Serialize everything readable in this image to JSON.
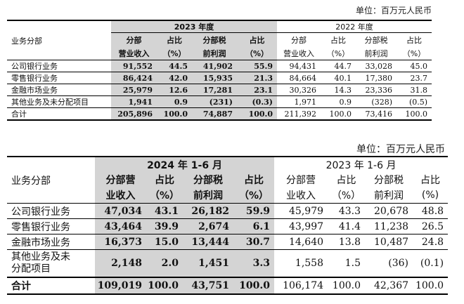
{
  "table1": {
    "unit": "单位：百万元人民币",
    "segment_header": "业务分部",
    "current_period": "2023 年度",
    "prior_period": "2022 年度",
    "cols_current": [
      [
        "分部",
        "营业收入"
      ],
      [
        "占比",
        "（%）"
      ],
      [
        "分部税",
        "前利润"
      ],
      [
        "占比",
        "（%）"
      ]
    ],
    "cols_prior": [
      [
        "分部",
        "营业收入"
      ],
      [
        "占比",
        "（%）"
      ],
      [
        "分部税",
        "前利润"
      ],
      [
        "占比",
        "（%）"
      ]
    ],
    "rows": [
      {
        "segment": "公司银行业务",
        "current": [
          "91,552",
          "44.5",
          "41,902",
          "55.9"
        ],
        "prior": [
          "94,431",
          "44.7",
          "33,028",
          "45.0"
        ]
      },
      {
        "segment": "零售银行业务",
        "current": [
          "86,424",
          "42.0",
          "15,935",
          "21.3"
        ],
        "prior": [
          "84,664",
          "40.1",
          "17,380",
          "23.7"
        ]
      },
      {
        "segment": "金融市场业务",
        "current": [
          "25,979",
          "12.6",
          "17,281",
          "23.1"
        ],
        "prior": [
          "30,326",
          "14.3",
          "23,336",
          "31.8"
        ]
      },
      {
        "segment": "其他业务及未分配项目",
        "current": [
          "1,941",
          "0.9",
          "(231)",
          "(0.3)"
        ],
        "prior": [
          "1,971",
          "0.9",
          "(328)",
          "(0.5)"
        ]
      },
      {
        "segment": "合计",
        "current": [
          "205,896",
          "100.0",
          "74,887",
          "100.0"
        ],
        "prior": [
          "211,392",
          "100.0",
          "73,416",
          "100.0"
        ]
      }
    ]
  },
  "table2": {
    "unit": "单位：百万元人民币",
    "segment_header": "业务分部",
    "current_period": "2024 年 1-6 月",
    "prior_period": "2023 年 1-6 月",
    "cols_current": [
      [
        "分部营",
        "业收入"
      ],
      [
        "占比",
        "（%）"
      ],
      [
        "分部税",
        "前利润"
      ],
      [
        "占比",
        "（%）"
      ]
    ],
    "cols_prior": [
      [
        "分部营",
        "业收入"
      ],
      [
        "占比",
        "（%）"
      ],
      [
        "分部税",
        "前利润"
      ],
      [
        "占比",
        "(%)"
      ]
    ],
    "rows": [
      {
        "segment": "公司银行业务",
        "current": [
          "47,034",
          "43.1",
          "26,182",
          "59.9"
        ],
        "prior": [
          "45,979",
          "43.3",
          "20,678",
          "48.8"
        ]
      },
      {
        "segment": "零售银行业务",
        "current": [
          "43,464",
          "39.9",
          "2,674",
          "6.1"
        ],
        "prior": [
          "43,997",
          "41.4",
          "11,238",
          "26.5"
        ]
      },
      {
        "segment": "金融市场业务",
        "current": [
          "16,373",
          "15.0",
          "13,444",
          "30.7"
        ],
        "prior": [
          "14,640",
          "13.8",
          "10,487",
          "24.8"
        ]
      },
      {
        "segment_lines": [
          "其他业务及未",
          "分配项目"
        ],
        "current": [
          "2,148",
          "2.0",
          "1,451",
          "3.3"
        ],
        "prior": [
          "1,558",
          "1.5",
          "(36)",
          "(0.1)"
        ]
      },
      {
        "segment": "合计",
        "current": [
          "109,019",
          "100.0",
          "43,751",
          "100.0"
        ],
        "prior": [
          "106,174",
          "100.0",
          "42,367",
          "100.0"
        ]
      }
    ]
  }
}
